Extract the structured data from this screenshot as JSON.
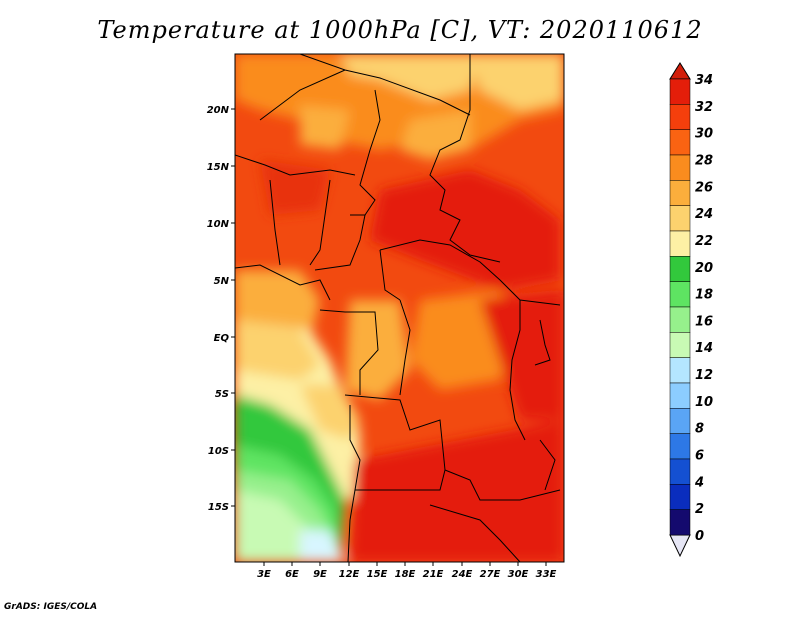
{
  "title": "Temperature at 1000hPa [C], VT: 2020110612",
  "credit": "GrADS: IGES/COLA",
  "map": {
    "lat_ticks": [
      "20N",
      "15N",
      "10N",
      "5N",
      "EQ",
      "5S",
      "10S",
      "15S"
    ],
    "lon_ticks": [
      "3E",
      "6E",
      "9E",
      "12E",
      "15E",
      "18E",
      "21E",
      "24E",
      "27E",
      "30E",
      "33E"
    ]
  },
  "colorbar": {
    "labels": [
      "34",
      "32",
      "30",
      "28",
      "26",
      "24",
      "22",
      "20",
      "18",
      "16",
      "14",
      "12",
      "10",
      "8",
      "6",
      "4",
      "2",
      "0"
    ],
    "colors": [
      "#e41e0a",
      "#f53f0c",
      "#fa6312",
      "#fa8c1e",
      "#fbae3c",
      "#fcd26e",
      "#fdf0a5",
      "#32c83c",
      "#5ee462",
      "#96f08c",
      "#c8fab4",
      "#b4e6ff",
      "#8ccdff",
      "#5aa5f5",
      "#2d78e6",
      "#1450d2",
      "#0a2dbe",
      "#140a6e"
    ],
    "top_color": "#d21e0a",
    "bottom_color": "#e6e6f5"
  }
}
